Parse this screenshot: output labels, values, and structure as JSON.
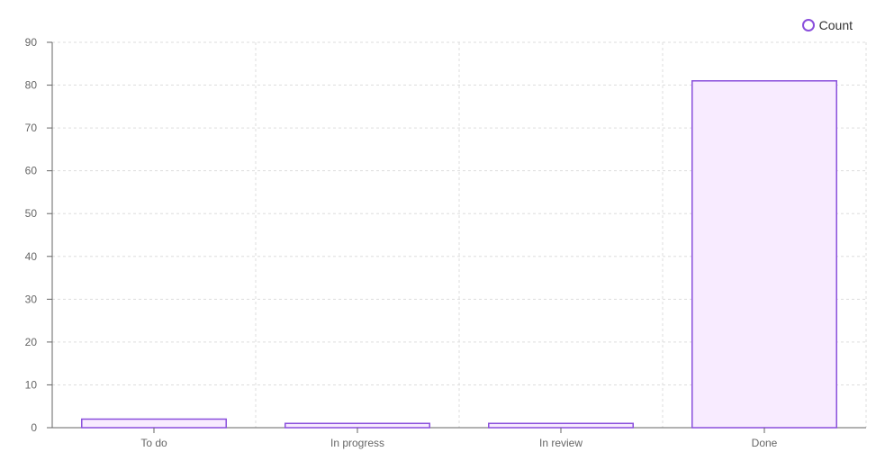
{
  "chart_data": {
    "type": "bar",
    "categories": [
      "To do",
      "In progress",
      "In review",
      "Done"
    ],
    "series": [
      {
        "name": "Count",
        "values": [
          2,
          1,
          1,
          81
        ]
      }
    ],
    "ylim": [
      0,
      90
    ],
    "yticks": [
      0,
      10,
      20,
      30,
      40,
      50,
      60,
      70,
      80,
      90
    ],
    "grid": true,
    "legend_position": "top-right",
    "colors": {
      "bar_stroke": "#8a4fdc",
      "bar_fill": "#f8ebff",
      "grid": "#dddddd",
      "axis": "#666666",
      "tick_text": "#666666"
    }
  }
}
